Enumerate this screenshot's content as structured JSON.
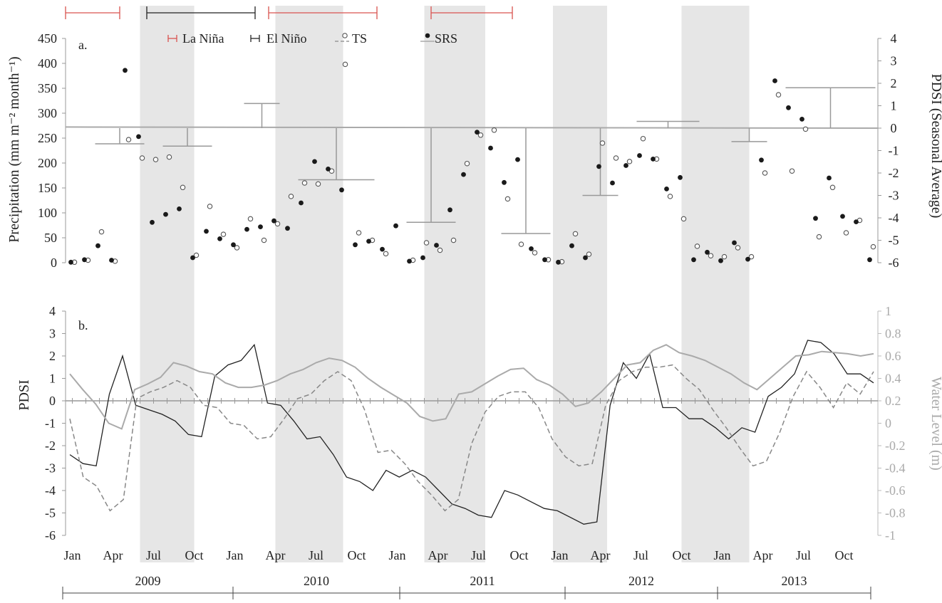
{
  "figure": {
    "colors": {
      "la_nina": "#d9534f",
      "el_nino": "#222222",
      "ts": "#888888",
      "srs": "#1a1a1a",
      "water": "#aaaaaa",
      "wet_band": "#e6e6e6",
      "axis": "#999999"
    }
  },
  "chart_data": [
    {
      "panel_label": "a.",
      "type": "scatter",
      "ylabel": "Precipitation (mm m⁻² month⁻¹)",
      "ylabel2": "PDSI (Seasonal Average)",
      "ylim": [
        0,
        450
      ],
      "ylim2": [
        -6,
        4
      ],
      "y_ticks": [
        "0",
        "50",
        "100",
        "150",
        "200",
        "250",
        "300",
        "350",
        "400",
        "450"
      ],
      "y2_ticks": [
        "-6",
        "-5",
        "-4",
        "-3",
        "-2",
        "-1",
        "0",
        "1",
        "2",
        "3",
        "4"
      ],
      "legend": [
        {
          "label": "La Niña",
          "marker": "la-nina-bar"
        },
        {
          "label": "El Niño",
          "marker": "el-nino-bar"
        },
        {
          "label": "TS",
          "marker": "open-circle-dashed"
        },
        {
          "label": "SRS",
          "marker": "filled-circle-solid"
        }
      ],
      "enso_periods": [
        {
          "type": "La Niña",
          "start": 0,
          "end": 4
        },
        {
          "type": "El Niño",
          "start": 6,
          "end": 14
        },
        {
          "type": "La Niña",
          "start": 15,
          "end": 23
        },
        {
          "type": "La Niña",
          "start": 27,
          "end": 33
        }
      ],
      "series": [
        {
          "name": "TS",
          "values": [
            1,
            5,
            62,
            3,
            247,
            210,
            207,
            212,
            151,
            15,
            113,
            57,
            30,
            88,
            45,
            78,
            133,
            160,
            158,
            184,
            398,
            60,
            45,
            18,
            null,
            5,
            40,
            25,
            45,
            199,
            256,
            266,
            128,
            37,
            20,
            6,
            2,
            58,
            17,
            240,
            210,
            203,
            249,
            208,
            133,
            88,
            33,
            14,
            12,
            30,
            12,
            180,
            337,
            184,
            268,
            52,
            151,
            60,
            85,
            32
          ],
          "srs": [
            1,
            6,
            34,
            5,
            386,
            253,
            81,
            97,
            108,
            10,
            63,
            48,
            36,
            67,
            72,
            84,
            69,
            120,
            203,
            188,
            146,
            36,
            43,
            27,
            74,
            3,
            10,
            35,
            106,
            177,
            262,
            230,
            161,
            207,
            28,
            6,
            1,
            34,
            10,
            193,
            160,
            195,
            215,
            208,
            148,
            171,
            6,
            21,
            4,
            40,
            7,
            206,
            365,
            311,
            288,
            89,
            170,
            93,
            82,
            6
          ]
        }
      ],
      "pdsi_seasonal": [
        {
          "x0": 2,
          "x1": 5,
          "value": -0.7
        },
        {
          "x0": 7,
          "x1": 10,
          "value": -0.8
        },
        {
          "x0": 13,
          "x1": 15,
          "value": 1.1
        },
        {
          "x0": 17,
          "x1": 22,
          "value": -2.3
        },
        {
          "x0": 25,
          "x1": 28,
          "value": -4.2
        },
        {
          "x0": 32,
          "x1": 35,
          "value": -4.7
        },
        {
          "x0": 38,
          "x1": 40,
          "value": -3.0
        },
        {
          "x0": 42,
          "x1": 46,
          "value": 0.3
        },
        {
          "x0": 49,
          "x1": 51,
          "value": -0.6
        },
        {
          "x0": 53,
          "x1": 59,
          "value": 1.8
        }
      ]
    },
    {
      "panel_label": "b.",
      "type": "line",
      "ylabel": "PDSI",
      "ylabel2": "Water Level (m)",
      "ylim": [
        -6,
        4
      ],
      "ylim2": [
        -1,
        1
      ],
      "y_ticks": [
        "-6",
        "-5",
        "-4",
        "-3",
        "-2",
        "-1",
        "0",
        "1",
        "2",
        "3",
        "4"
      ],
      "y2_ticks": [
        "-1",
        "-0.8",
        "-0.6",
        "-0.4",
        "-0.2",
        "0",
        "0.2",
        "0.4",
        "0.6",
        "0.8",
        "1"
      ],
      "series": [
        {
          "name": "SRS PDSI",
          "style": "solid-black",
          "values": [
            -2.4,
            -2.8,
            -2.9,
            0.3,
            2.0,
            -0.2,
            -0.4,
            -0.6,
            -0.9,
            -1.5,
            -1.6,
            1.1,
            1.6,
            1.8,
            2.5,
            -0.1,
            -0.2,
            -0.9,
            -1.7,
            -1.6,
            -2.4,
            -3.4,
            -3.6,
            -4.0,
            -3.1,
            -3.4,
            -3.1,
            -3.4,
            -4.0,
            -4.6,
            -4.8,
            -5.1,
            -5.2,
            -4.0,
            -4.2,
            -4.5,
            -4.8,
            -4.9,
            -5.2,
            -5.5,
            -5.4,
            -0.2,
            1.7,
            1.0,
            2.1,
            -0.3,
            -0.3,
            -0.8,
            -0.8,
            -1.2,
            -1.7,
            -1.2,
            -1.4,
            0.2,
            0.6,
            1.2,
            2.7,
            2.6,
            2.1,
            1.2,
            1.2,
            0.8
          ]
        },
        {
          "name": "TS PDSI",
          "style": "dashed-grey",
          "values": [
            -0.8,
            -3.4,
            -3.8,
            -4.9,
            -4.4,
            0.1,
            0.4,
            0.6,
            0.9,
            0.6,
            -0.2,
            -0.3,
            -1.0,
            -1.1,
            -1.7,
            -1.6,
            -0.8,
            0.1,
            0.3,
            0.9,
            1.3,
            0.9,
            -0.4,
            -2.3,
            -2.2,
            -2.8,
            -3.6,
            -4.2,
            -4.9,
            -4.4,
            -1.9,
            -0.5,
            0.2,
            0.4,
            0.4,
            -0.3,
            -1.7,
            -2.5,
            -2.9,
            -2.8,
            -0.2,
            0.9,
            1.3,
            1.5,
            1.5,
            1.6,
            1.0,
            0.5,
            -0.4,
            -1.2,
            -2.1,
            -2.9,
            -2.7,
            -1.4,
            0.2,
            1.3,
            0.6,
            -0.3,
            0.8,
            0.3,
            1.3
          ]
        },
        {
          "name": "Water Level",
          "style": "solid-lightgrey",
          "axis": "right",
          "values": [
            0.44,
            0.3,
            0.17,
            0.0,
            -0.05,
            0.3,
            0.35,
            0.41,
            0.54,
            0.51,
            0.46,
            0.44,
            0.36,
            0.32,
            0.32,
            0.34,
            0.38,
            0.44,
            0.48,
            0.54,
            0.58,
            0.56,
            0.5,
            0.4,
            0.32,
            0.25,
            0.18,
            0.06,
            0.02,
            0.04,
            0.26,
            0.28,
            0.35,
            0.42,
            0.48,
            0.49,
            0.39,
            0.34,
            0.26,
            0.15,
            0.18,
            0.28,
            0.4,
            0.52,
            0.54,
            0.65,
            0.7,
            0.63,
            0.6,
            0.56,
            0.5,
            0.44,
            0.36,
            0.3,
            0.4,
            0.5,
            0.6,
            0.61,
            0.64,
            0.63,
            0.62,
            0.6,
            0.62
          ]
        }
      ]
    }
  ],
  "x_axis": {
    "month_ticks": [
      "Jan",
      "Apr",
      "Jul",
      "Oct",
      "Jan",
      "Apr",
      "Jul",
      "Oct",
      "Jan",
      "Apr",
      "Jul",
      "Oct",
      "Jan",
      "Apr",
      "Jul",
      "Oct",
      "Jan",
      "Apr",
      "Jul",
      "Oct"
    ],
    "years": [
      "2009",
      "2010",
      "2011",
      "2012",
      "2013"
    ],
    "wet_seasons": [
      [
        5.5,
        9.5
      ],
      [
        15.5,
        20.5
      ],
      [
        26.5,
        31.0
      ],
      [
        36.0,
        40.0
      ],
      [
        45.5,
        50.5
      ]
    ]
  }
}
